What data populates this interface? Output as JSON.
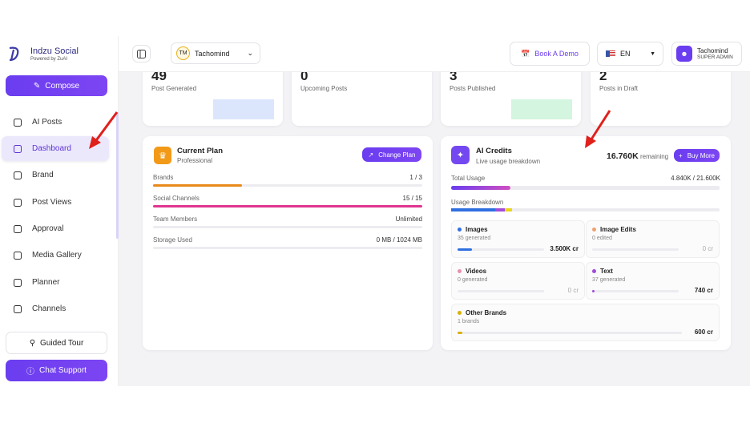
{
  "sidebar": {
    "brand": "Indzu Social",
    "tagline": "Powered by ZuAI",
    "compose": "Compose",
    "nav": [
      "AI Posts",
      "Dashboard",
      "Brand",
      "Post Views",
      "Approval",
      "Media Gallery",
      "Planner",
      "Channels"
    ],
    "guided_tour": "Guided Tour",
    "chat_support": "Chat Support"
  },
  "topbar": {
    "workspace_initials": "TM",
    "workspace": "Tachomind",
    "book_demo": "Book A Demo",
    "language": "EN",
    "user_name": "Tachomind",
    "user_role": "SUPER ADMIN"
  },
  "stats": [
    {
      "value": 49,
      "label": "Post Generated"
    },
    {
      "value": 0,
      "label": "Upcoming Posts"
    },
    {
      "value": 3,
      "label": "Posts Published"
    },
    {
      "value": 2,
      "label": "Posts in Draft"
    }
  ],
  "plan": {
    "title": "Current Plan",
    "name": "Professional",
    "button": "Change Plan",
    "rows": [
      {
        "label": "Brands",
        "value": "1 / 3"
      },
      {
        "label": "Social Channels",
        "value": "15 / 15"
      },
      {
        "label": "Team Members",
        "value": "Unlimited"
      },
      {
        "label": "Storage Used",
        "value": "0 MB / 1024 MB"
      }
    ]
  },
  "credits": {
    "title": "AI Credits",
    "subtitle": "Live usage breakdown",
    "remaining_value": "16.760K",
    "remaining_label": "remaining",
    "button": "Buy More",
    "total_label": "Total Usage",
    "total_value": "4.840K / 21.600K",
    "breakdown_label": "Usage Breakdown",
    "tiles": [
      {
        "name": "Images",
        "detail": "35 generated",
        "credits": "3.500K cr"
      },
      {
        "name": "Image Edits",
        "detail": "0 edited",
        "credits": "0 cr"
      },
      {
        "name": "Videos",
        "detail": "0 generated",
        "credits": "0 cr"
      },
      {
        "name": "Text",
        "detail": "37 generated",
        "credits": "740 cr"
      },
      {
        "name": "Other Brands",
        "detail": "1 brands",
        "credits": "600 cr"
      }
    ]
  }
}
